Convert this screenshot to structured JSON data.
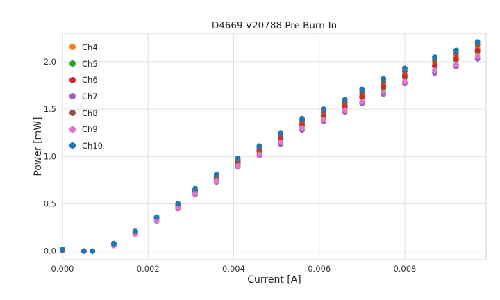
{
  "chart_data": {
    "type": "scatter",
    "title": "D4669 V20788 Pre Burn-In",
    "xlabel": "Current [A]",
    "ylabel": "Power [mW]",
    "xlim": [
      0,
      0.0099
    ],
    "ylim": [
      -0.09,
      2.3
    ],
    "x_ticks": [
      0,
      0.002,
      0.004,
      0.006,
      0.008
    ],
    "x_tick_labels": [
      "0.000",
      "0.002",
      "0.004",
      "0.006",
      "0.008"
    ],
    "y_ticks": [
      0,
      0.5,
      1.0,
      1.5,
      2.0
    ],
    "y_tick_labels": [
      "0.0",
      "0.5",
      "1.0",
      "1.5",
      "2.0"
    ],
    "grid": true,
    "legend_position": "upper left",
    "x": [
      0.0,
      0.0005,
      0.0007,
      0.0012,
      0.0017,
      0.0022,
      0.0027,
      0.0031,
      0.0036,
      0.0041,
      0.0046,
      0.0051,
      0.0056,
      0.0061,
      0.0066,
      0.007,
      0.0075,
      0.008,
      0.0087,
      0.0092,
      0.0097
    ],
    "series": [
      {
        "name": "Ch4",
        "color": "#ff7f0e",
        "values": [
          0.01,
          0.0,
          0.0,
          0.07,
          0.2,
          0.35,
          0.48,
          0.64,
          0.78,
          0.95,
          1.07,
          1.21,
          1.36,
          1.45,
          1.55,
          1.65,
          1.76,
          1.87,
          1.99,
          2.06,
          2.14
        ]
      },
      {
        "name": "Ch5",
        "color": "#2ca02c",
        "values": [
          0.01,
          0.0,
          0.0,
          0.07,
          0.19,
          0.34,
          0.47,
          0.62,
          0.76,
          0.93,
          1.05,
          1.18,
          1.33,
          1.42,
          1.52,
          1.62,
          1.72,
          1.83,
          1.95,
          2.02,
          2.1
        ]
      },
      {
        "name": "Ch6",
        "color": "#d62728",
        "values": [
          0.01,
          0.0,
          0.0,
          0.07,
          0.19,
          0.34,
          0.48,
          0.63,
          0.77,
          0.94,
          1.06,
          1.19,
          1.34,
          1.43,
          1.53,
          1.63,
          1.74,
          1.85,
          1.96,
          2.03,
          2.12
        ]
      },
      {
        "name": "Ch7",
        "color": "#9467bd",
        "values": [
          0.01,
          0.0,
          0.0,
          0.06,
          0.18,
          0.32,
          0.45,
          0.6,
          0.73,
          0.89,
          1.01,
          1.13,
          1.28,
          1.37,
          1.47,
          1.56,
          1.66,
          1.77,
          1.88,
          1.95,
          2.03
        ]
      },
      {
        "name": "Ch8",
        "color": "#8c564b",
        "values": [
          0.01,
          0.0,
          0.0,
          0.07,
          0.2,
          0.35,
          0.49,
          0.65,
          0.79,
          0.96,
          1.09,
          1.23,
          1.38,
          1.47,
          1.57,
          1.68,
          1.79,
          1.9,
          2.02,
          2.09,
          2.18
        ]
      },
      {
        "name": "Ch9",
        "color": "#e377c2",
        "values": [
          0.02,
          0.0,
          0.0,
          0.06,
          0.18,
          0.33,
          0.46,
          0.61,
          0.74,
          0.9,
          1.02,
          1.15,
          1.3,
          1.39,
          1.49,
          1.58,
          1.68,
          1.79,
          1.91,
          1.97,
          2.06
        ]
      },
      {
        "name": "Ch10",
        "color": "#1f77b4",
        "values": [
          0.02,
          0.0,
          0.0,
          0.08,
          0.21,
          0.36,
          0.5,
          0.66,
          0.81,
          0.98,
          1.11,
          1.25,
          1.4,
          1.5,
          1.6,
          1.71,
          1.82,
          1.93,
          2.05,
          2.12,
          2.21
        ]
      }
    ],
    "style": {
      "grid_color": "#e0e0e0",
      "spine_color": "#d9d9d9",
      "tick_label_color": "#333333",
      "marker_radius": 4
    }
  }
}
